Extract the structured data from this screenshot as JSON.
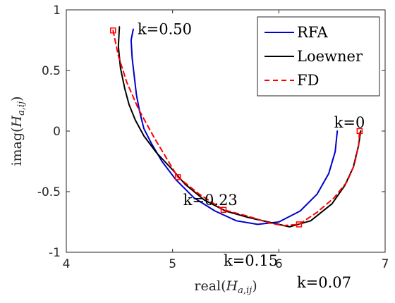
{
  "chart_data": {
    "type": "line",
    "xlabel": {
      "pre": "real(",
      "main": "H",
      "sub": "a,ij",
      "post": ")"
    },
    "ylabel": {
      "pre": "imag(",
      "main": "H",
      "sub": "a,ij",
      "post": ")"
    },
    "xlim": [
      4,
      7
    ],
    "ylim": [
      -1,
      1
    ],
    "xticks": [
      4,
      5,
      6,
      7
    ],
    "yticks": [
      -1,
      -0.5,
      0,
      0.5,
      1
    ],
    "xtick_labels": [
      "4",
      "5",
      "6",
      "7"
    ],
    "ytick_labels": [
      "-1",
      "-0.5",
      "0",
      "0.5",
      "1"
    ],
    "grid": false,
    "legend_position": "top-right",
    "series": [
      {
        "name": "RFA",
        "color": "#0000cc",
        "style": "solid",
        "x": [
          4.63,
          4.61,
          4.62,
          4.64,
          4.66,
          4.69,
          4.73,
          4.8,
          4.9,
          5.03,
          5.2,
          5.4,
          5.6,
          5.8,
          6.0,
          6.2,
          6.36,
          6.47,
          6.53,
          6.55
        ],
        "y": [
          0.84,
          0.75,
          0.6,
          0.45,
          0.3,
          0.16,
          0.02,
          -0.1,
          -0.25,
          -0.4,
          -0.55,
          -0.66,
          -0.74,
          -0.77,
          -0.75,
          -0.66,
          -0.52,
          -0.35,
          -0.17,
          0.0
        ]
      },
      {
        "name": "Loewner",
        "color": "#000000",
        "style": "solid",
        "x": [
          4.5,
          4.49,
          4.51,
          4.55,
          4.59,
          4.65,
          4.73,
          4.85,
          5.0,
          5.12,
          5.3,
          5.5,
          5.7,
          5.9,
          6.1,
          6.3,
          6.5,
          6.62,
          6.7,
          6.75,
          6.77
        ],
        "y": [
          0.86,
          0.7,
          0.52,
          0.35,
          0.22,
          0.09,
          -0.04,
          -0.18,
          -0.32,
          -0.44,
          -0.57,
          -0.66,
          -0.71,
          -0.75,
          -0.79,
          -0.74,
          -0.6,
          -0.45,
          -0.3,
          -0.12,
          0.0
        ]
      },
      {
        "name": "FD",
        "color": "#ff0000",
        "style": "dashed",
        "x": [
          4.44,
          4.49,
          4.57,
          4.68,
          4.83,
          5.05,
          5.25,
          5.48,
          5.7,
          5.92,
          6.04,
          6.19,
          6.36,
          6.52,
          6.64,
          6.71,
          6.75,
          6.76
        ],
        "y": [
          0.83,
          0.62,
          0.4,
          0.18,
          -0.06,
          -0.38,
          -0.52,
          -0.65,
          -0.7,
          -0.76,
          -0.78,
          -0.77,
          -0.67,
          -0.55,
          -0.42,
          -0.28,
          -0.12,
          0.0
        ]
      }
    ],
    "fd_markers": [
      {
        "x": 4.44,
        "y": 0.83
      },
      {
        "x": 5.05,
        "y": -0.38
      },
      {
        "x": 5.48,
        "y": -0.65
      },
      {
        "x": 6.19,
        "y": -0.77
      },
      {
        "x": 6.76,
        "y": 0.0
      }
    ],
    "annotations": [
      {
        "text": "k=0.50",
        "x": 4.67,
        "y": 0.84
      },
      {
        "text": "k=0.23",
        "x": 5.1,
        "y": -0.57
      },
      {
        "text": "k=0.15",
        "x": 5.48,
        "y": -1.07
      },
      {
        "text": "k=0.07",
        "x": 6.17,
        "y": -1.25
      },
      {
        "text": "k=0",
        "x": 6.52,
        "y": 0.07
      }
    ]
  }
}
